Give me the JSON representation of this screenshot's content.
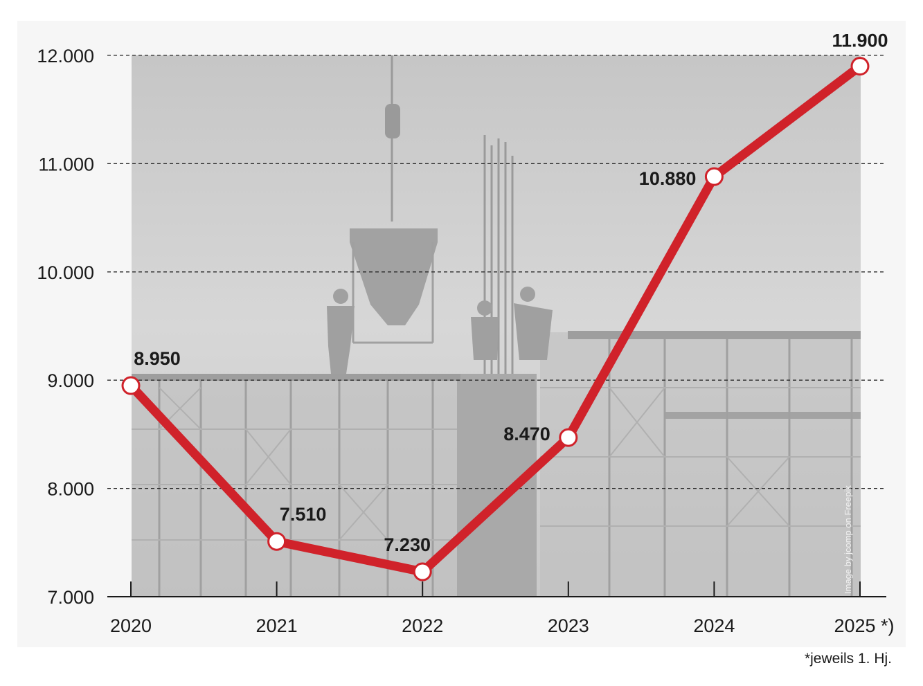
{
  "chart_data": {
    "type": "line",
    "categories": [
      "2020",
      "2021",
      "2022",
      "2023",
      "2024",
      "2025 *)"
    ],
    "values": [
      8950,
      7510,
      7230,
      8470,
      10880,
      11900
    ],
    "value_labels": [
      "8.950",
      "7.510",
      "7.230",
      "8.470",
      "10.880",
      "11.900"
    ],
    "ylim": [
      7000,
      12000
    ],
    "yticks": [
      7000,
      8000,
      9000,
      10000,
      11000,
      12000
    ],
    "ytick_labels": [
      "7.000",
      "8.000",
      "9.000",
      "10.000",
      "11.000",
      "12.000"
    ],
    "grid": true,
    "line_color": "#d0222a",
    "marker_fill": "#ffffff",
    "footnote": "*jeweils 1. Hj.",
    "image_credit": "Image by jcomp on Freepik"
  }
}
